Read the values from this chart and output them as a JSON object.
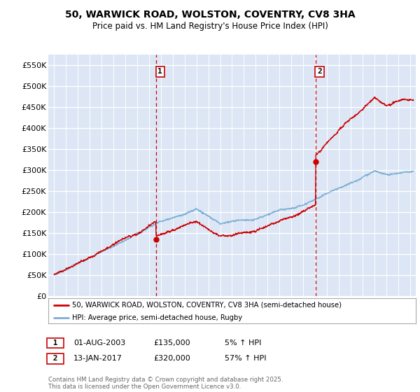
{
  "title": "50, WARWICK ROAD, WOLSTON, COVENTRY, CV8 3HA",
  "subtitle": "Price paid vs. HM Land Registry's House Price Index (HPI)",
  "legend_line1": "50, WARWICK ROAD, WOLSTON, COVENTRY, CV8 3HA (semi-detached house)",
  "legend_line2": "HPI: Average price, semi-detached house, Rugby",
  "annotation1_date": "01-AUG-2003",
  "annotation1_price": "£135,000",
  "annotation1_change": "5% ↑ HPI",
  "annotation2_date": "13-JAN-2017",
  "annotation2_price": "£320,000",
  "annotation2_change": "57% ↑ HPI",
  "footer": "Contains HM Land Registry data © Crown copyright and database right 2025.\nThis data is licensed under the Open Government Licence v3.0.",
  "bg_color": "#dce6f5",
  "fig_bg_color": "#ffffff",
  "red_line_color": "#cc0000",
  "blue_line_color": "#7bafd4",
  "vline_color": "#cc0000",
  "grid_color": "#ffffff",
  "ylim": [
    0,
    575000
  ],
  "yticks": [
    0,
    50000,
    100000,
    150000,
    200000,
    250000,
    300000,
    350000,
    400000,
    450000,
    500000,
    550000
  ],
  "xlim_start": 1994.5,
  "xlim_end": 2025.5,
  "sale1_x": 2003.58,
  "sale1_y": 135000,
  "sale2_x": 2017.04,
  "sale2_y": 320000
}
